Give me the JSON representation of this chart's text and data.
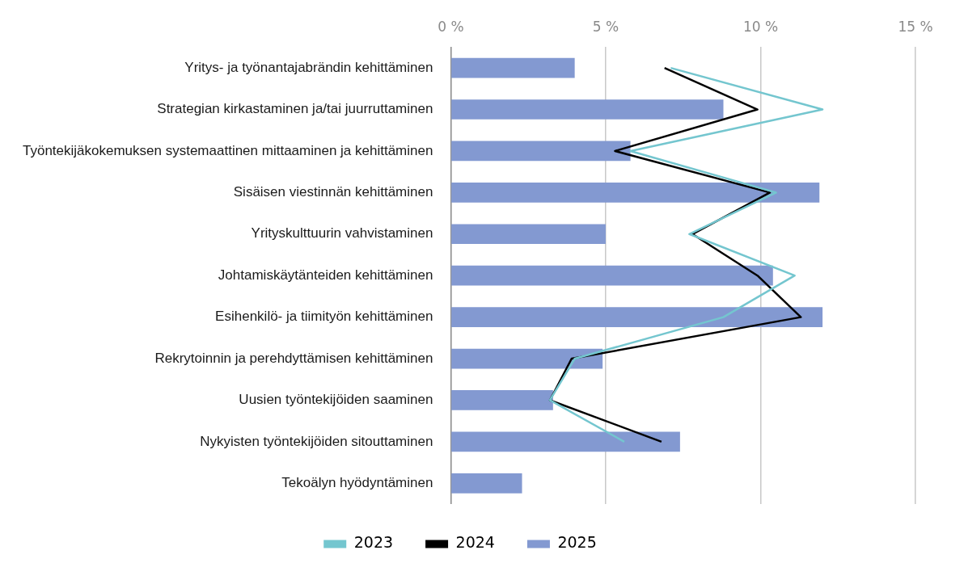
{
  "chart_data": {
    "type": "bar",
    "orientation": "horizontal",
    "categories": [
      "Yritys- ja työnantajabrändin kehittäminen",
      "Strategian kirkastaminen ja/tai juurruttaminen",
      "Työntekijäkokemuksen systemaattinen mittaaminen ja kehittäminen",
      "Sisäisen viestinnän kehittäminen",
      "Yrityskulttuurin vahvistaminen",
      "Johtamiskäytänteiden kehittäminen",
      "Esihenkilö- ja tiimityön kehittäminen",
      "Rekrytoinnin ja perehdyttämisen kehittäminen",
      "Uusien työntekijöiden saaminen",
      "Nykyisten työntekijöiden sitouttaminen",
      "Tekoälyn hyödyntäminen"
    ],
    "series": [
      {
        "name": "2023",
        "type": "line",
        "color": "#74c6cf",
        "values": [
          7.1,
          12.0,
          5.8,
          10.5,
          7.7,
          11.1,
          8.8,
          4.0,
          3.2,
          5.6,
          null
        ]
      },
      {
        "name": "2024",
        "type": "line",
        "color": "#000000",
        "values": [
          6.9,
          9.9,
          5.3,
          10.3,
          7.8,
          9.9,
          11.3,
          3.9,
          3.2,
          6.8,
          null
        ]
      },
      {
        "name": "2025",
        "color": "#8399d1",
        "values": [
          4.0,
          8.8,
          5.8,
          11.9,
          5.0,
          10.4,
          12.0,
          4.9,
          3.3,
          7.4,
          2.3
        ]
      }
    ],
    "xlim": [
      0,
      15
    ],
    "xticks": [
      {
        "value": 0,
        "label": "0 %"
      },
      {
        "value": 5,
        "label": "5 %"
      },
      {
        "value": 10,
        "label": "10 %"
      },
      {
        "value": 15,
        "label": "15 %"
      }
    ],
    "grid": "x",
    "legend": "bottom",
    "marker": "none",
    "line_style": "solid"
  }
}
